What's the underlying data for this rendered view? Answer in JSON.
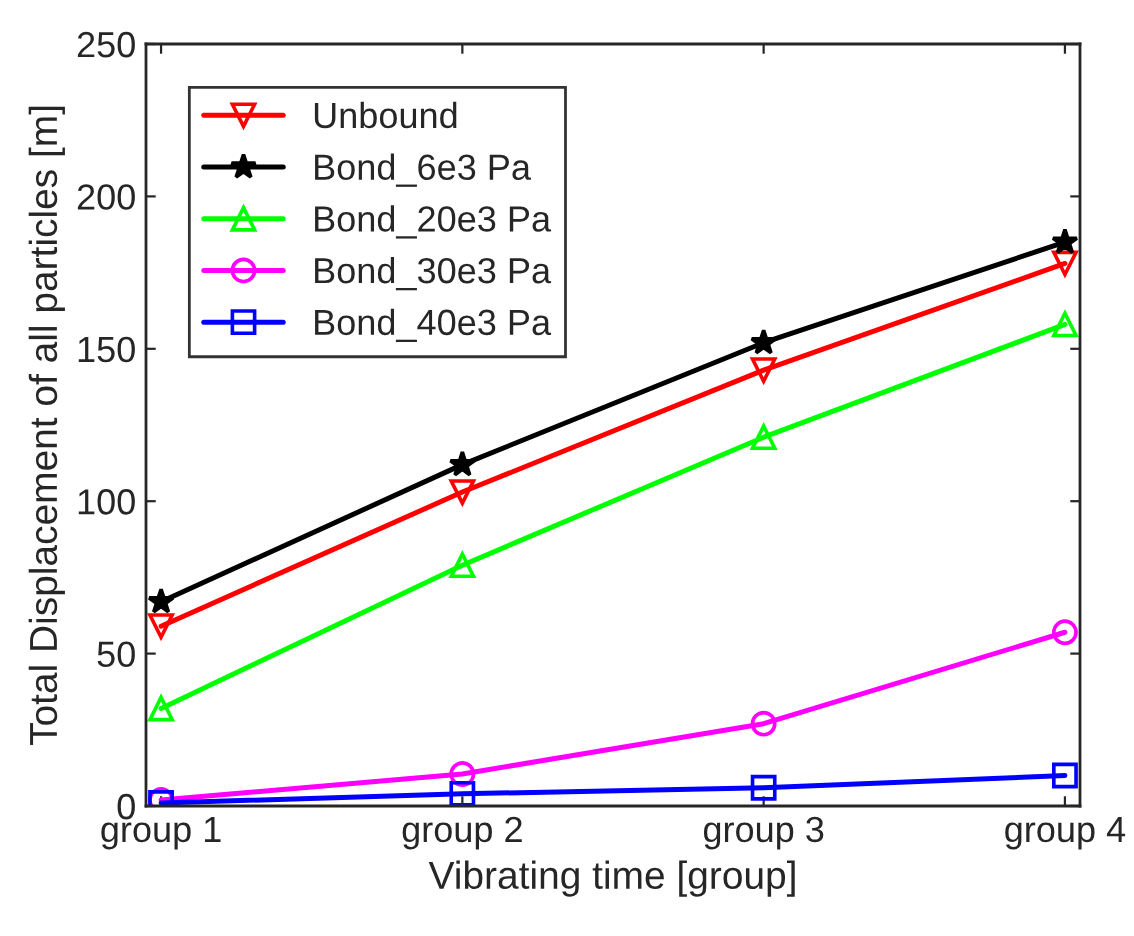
{
  "chart_data": {
    "type": "line",
    "xlabel": "Vibrating time [group]",
    "ylabel": "Total Displacement of all particles [m]",
    "categories": [
      "group 1",
      "group 2",
      "group 3",
      "group 4"
    ],
    "series": [
      {
        "name": "Unbound",
        "color": "#ff0000",
        "marker": "triangle_down",
        "values": [
          59,
          103,
          143,
          178
        ]
      },
      {
        "name": "Bond_6e3 Pa",
        "color": "#000000",
        "marker": "star",
        "values": [
          67,
          112,
          152,
          185
        ]
      },
      {
        "name": "Bond_20e3 Pa",
        "color": "#00ff00",
        "marker": "triangle",
        "values": [
          32,
          79,
          121,
          158
        ]
      },
      {
        "name": "Bond_30e3 Pa",
        "color": "#ff00ff",
        "marker": "circle",
        "values": [
          2,
          10.5,
          27,
          57
        ]
      },
      {
        "name": "Bond_40e3 Pa",
        "color": "#0000ff",
        "marker": "square",
        "values": [
          1,
          4,
          6,
          10
        ]
      }
    ],
    "ylim": [
      0,
      250
    ],
    "yticks": [
      0,
      50,
      100,
      150,
      200,
      250
    ],
    "grid": false,
    "legend": "top left",
    "line_style": "solid"
  }
}
